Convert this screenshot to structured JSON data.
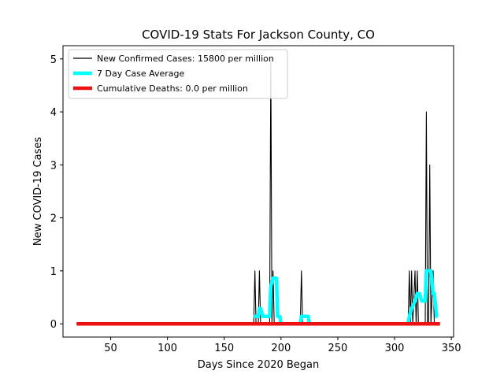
{
  "chart_data": {
    "type": "line",
    "title": "COVID-19 Stats For Jackson County, CO",
    "xlabel": "Days Since 2020 Began",
    "ylabel": "New COVID-19 Cases",
    "xlim": [
      8,
      352
    ],
    "ylim": [
      -0.25,
      5.25
    ],
    "xticks": [
      50,
      100,
      150,
      200,
      250,
      300,
      350
    ],
    "yticks": [
      0,
      1,
      2,
      3,
      4,
      5
    ],
    "grid": false,
    "legend_position": "top-left",
    "series": [
      {
        "name": "New Confirmed Cases: 15800 per million",
        "color": "#000000",
        "points": [
          [
            20,
            0
          ],
          [
            176,
            0
          ],
          [
            177,
            1
          ],
          [
            178,
            0
          ],
          [
            180,
            0
          ],
          [
            181,
            1
          ],
          [
            182,
            0
          ],
          [
            190,
            0
          ],
          [
            191,
            5
          ],
          [
            192,
            0
          ],
          [
            193,
            1
          ],
          [
            194,
            0
          ],
          [
            217,
            0
          ],
          [
            218,
            1
          ],
          [
            219,
            0
          ],
          [
            312,
            0
          ],
          [
            313,
            1
          ],
          [
            314,
            0
          ],
          [
            315,
            1
          ],
          [
            316,
            0
          ],
          [
            318,
            1
          ],
          [
            319,
            0
          ],
          [
            320,
            1
          ],
          [
            321,
            0
          ],
          [
            327,
            0
          ],
          [
            328,
            4
          ],
          [
            329,
            0
          ],
          [
            330,
            0
          ],
          [
            331,
            3
          ],
          [
            332,
            0
          ],
          [
            334,
            1
          ],
          [
            335,
            0
          ],
          [
            340,
            0
          ]
        ]
      },
      {
        "name": "7 Day Case Average",
        "color": "#00ffff",
        "points": [
          [
            176,
            0.14
          ],
          [
            177,
            0.14
          ],
          [
            180,
            0.14
          ],
          [
            181,
            0.29
          ],
          [
            182,
            0.29
          ],
          [
            184,
            0.14
          ],
          [
            190,
            0.14
          ],
          [
            191,
            0.71
          ],
          [
            193,
            0.86
          ],
          [
            194,
            0.86
          ],
          [
            196,
            0.86
          ],
          [
            197,
            0.14
          ],
          [
            199,
            0.14
          ],
          [
            200,
            0
          ],
          [
            217,
            0
          ],
          [
            218,
            0.14
          ],
          [
            224,
            0.14
          ],
          [
            225,
            0
          ],
          [
            312,
            0
          ],
          [
            313,
            0.14
          ],
          [
            315,
            0.29
          ],
          [
            318,
            0.43
          ],
          [
            320,
            0.57
          ],
          [
            322,
            0.57
          ],
          [
            324,
            0.43
          ],
          [
            327,
            0.43
          ],
          [
            328,
            1.0
          ],
          [
            329,
            1.0
          ],
          [
            331,
            1.0
          ],
          [
            332,
            1.0
          ],
          [
            334,
            0.57
          ],
          [
            335,
            0.57
          ],
          [
            337,
            0.14
          ],
          [
            338,
            0.14
          ]
        ]
      },
      {
        "name": "Cumulative Deaths: 0.0 per million",
        "color": "#ee1111",
        "points": [
          [
            20,
            0
          ],
          [
            340,
            0
          ]
        ]
      }
    ]
  }
}
